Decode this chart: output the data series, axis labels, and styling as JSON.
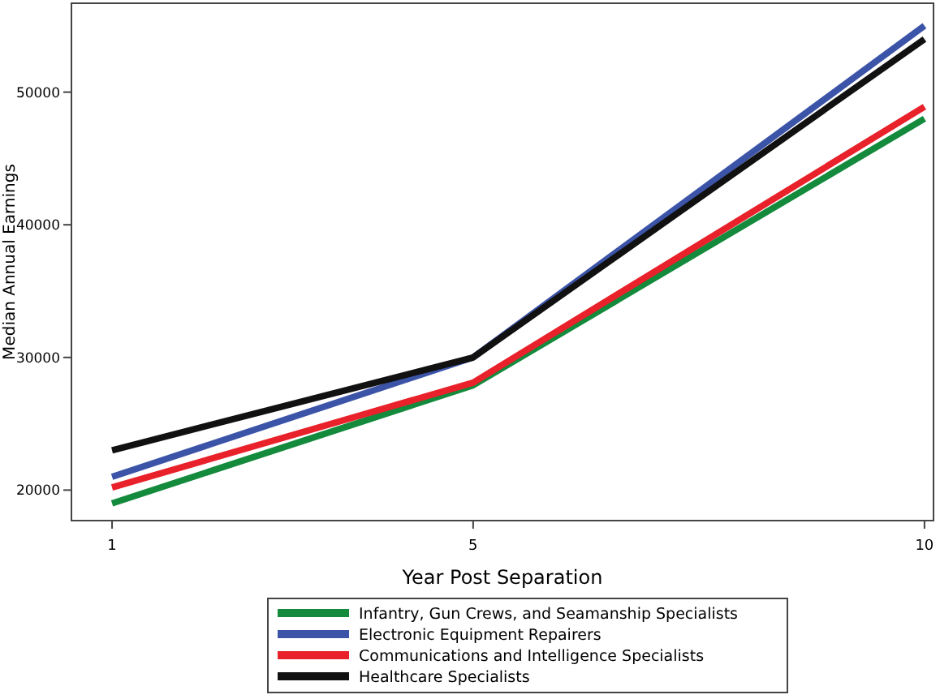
{
  "chart_data": {
    "type": "line",
    "xlabel": "Year Post Separation",
    "ylabel": "Median Annual Earnings",
    "x": [
      1,
      5,
      10
    ],
    "xlim": [
      0.55,
      10.1
    ],
    "xticks": [
      1,
      5,
      10
    ],
    "ylim": [
      17700,
      56700
    ],
    "yticks": [
      20000,
      30000,
      40000,
      50000
    ],
    "legend": "bottom",
    "grid": false,
    "marker": "none",
    "line_style": "solid",
    "series": [
      {
        "name": "Infantry, Gun Crews, and Seamanship Specialists",
        "color": "#138a3c",
        "values": [
          19000,
          27900,
          48000
        ]
      },
      {
        "name": "Electronic Equipment Repairers",
        "color": "#3c54a8",
        "values": [
          21000,
          30000,
          55000
        ]
      },
      {
        "name": "Communications and Intelligence Specialists",
        "color": "#e8212a",
        "values": [
          20200,
          28100,
          48900
        ]
      },
      {
        "name": "Healthcare Specialists",
        "color": "#111111",
        "values": [
          23000,
          30000,
          54000
        ]
      }
    ]
  }
}
